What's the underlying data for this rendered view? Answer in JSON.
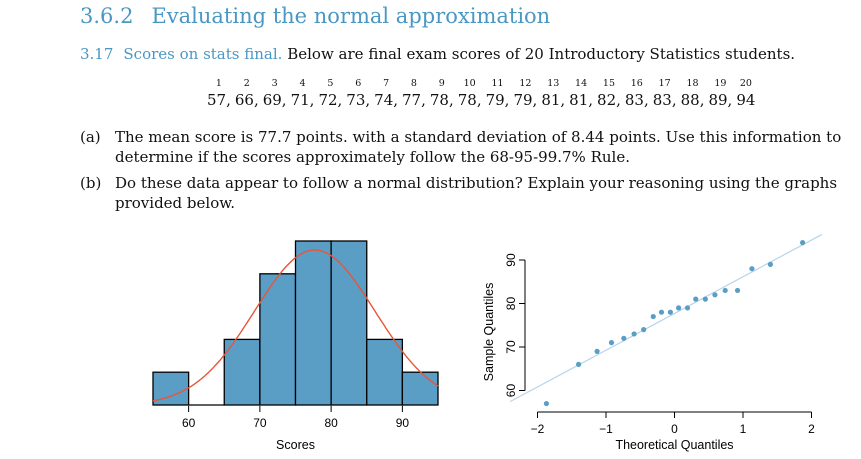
{
  "section": {
    "number": "3.6.2",
    "title": "Evaluating the normal approximation"
  },
  "exercise": {
    "number": "3.17",
    "title": "Scores on stats final.",
    "text": "Below are final exam scores of 20 Introductory Statistics students."
  },
  "scores": {
    "indices": [
      "1",
      "2",
      "3",
      "4",
      "5",
      "6",
      "7",
      "8",
      "9",
      "10",
      "11",
      "12",
      "13",
      "14",
      "15",
      "16",
      "17",
      "18",
      "19",
      "20"
    ],
    "values": [
      "57,",
      "66,",
      "69,",
      "71,",
      "72,",
      "73,",
      "74,",
      "77,",
      "78,",
      "78,",
      "79,",
      "79,",
      "81,",
      "81,",
      "82,",
      "83,",
      "83,",
      "88,",
      "89,",
      "94"
    ]
  },
  "parts": [
    {
      "label": "(a)",
      "text": "The mean score is 77.7 points. with a standard deviation of 8.44 points. Use this information to determine if the scores approximately follow the 68-95-99.7% Rule."
    },
    {
      "label": "(b)",
      "text": "Do these data appear to follow a normal distribution? Explain your reasoning using the graphs provided below."
    }
  ],
  "colors": {
    "accent": "#4a97c4",
    "bar_fill": "#5a9ec6",
    "curve": "#e8553a",
    "qq_line": "#b8d4ea"
  },
  "chart_data": [
    {
      "type": "bar",
      "subtype": "histogram",
      "xlabel": "Scores",
      "bin_edges": [
        55,
        60,
        65,
        70,
        75,
        80,
        85,
        90,
        95
      ],
      "counts": [
        1,
        0,
        2,
        4,
        5,
        5,
        2,
        1
      ],
      "xticks": [
        60,
        70,
        80,
        90
      ],
      "overlay": {
        "type": "normal-curve",
        "mean": 77.7,
        "sd": 8.44
      }
    },
    {
      "type": "scatter",
      "subtype": "normal-probability-plot",
      "xlabel": "Theoretical Quantiles",
      "ylabel": "Sample Quantiles",
      "xticks": [
        -2,
        -1,
        0,
        1,
        2
      ],
      "yticks": [
        60,
        70,
        80,
        90
      ],
      "xlim": [
        -2,
        2
      ],
      "ylim": [
        56,
        94
      ],
      "x": [
        -1.87,
        -1.4,
        -1.13,
        -0.92,
        -0.74,
        -0.59,
        -0.45,
        -0.31,
        -0.19,
        -0.06,
        0.06,
        0.19,
        0.31,
        0.45,
        0.59,
        0.74,
        0.92,
        1.13,
        1.4,
        1.87
      ],
      "y": [
        57,
        66,
        69,
        71,
        72,
        73,
        74,
        77,
        78,
        78,
        79,
        79,
        81,
        81,
        82,
        83,
        83,
        88,
        89,
        94
      ],
      "reference_line": {
        "intercept": 77.7,
        "slope": 8.44
      }
    }
  ]
}
